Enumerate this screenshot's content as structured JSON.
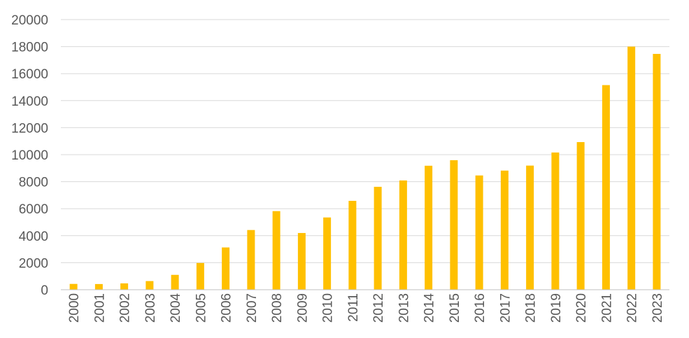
{
  "chart_data": {
    "type": "bar",
    "categories": [
      "2000",
      "2001",
      "2002",
      "2003",
      "2004",
      "2005",
      "2006",
      "2007",
      "2008",
      "2009",
      "2010",
      "2011",
      "2012",
      "2013",
      "2014",
      "2015",
      "2016",
      "2017",
      "2018",
      "2019",
      "2020",
      "2021",
      "2022",
      "2023"
    ],
    "values": [
      430,
      420,
      470,
      640,
      1100,
      1980,
      3130,
      4420,
      5820,
      4200,
      5350,
      6580,
      7620,
      8090,
      9180,
      9590,
      8460,
      8820,
      9190,
      10160,
      10930,
      15150,
      18000,
      17460
    ],
    "ylim": [
      0,
      20000
    ],
    "yticks": [
      0,
      2000,
      4000,
      6000,
      8000,
      10000,
      12000,
      14000,
      16000,
      18000,
      20000
    ],
    "bar_color": "#FFC000",
    "grid": true,
    "legend": "none",
    "title": "",
    "xlabel": "",
    "ylabel": ""
  }
}
